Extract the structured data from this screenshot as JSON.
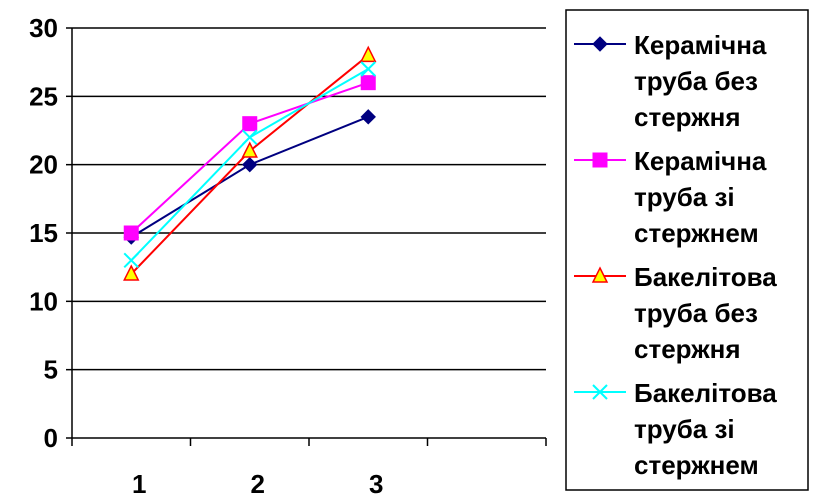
{
  "chart_data": {
    "type": "line",
    "categories": [
      "1",
      "2",
      "3"
    ],
    "y_ticks": [
      "0",
      "5",
      "10",
      "15",
      "20",
      "25",
      "30"
    ],
    "ylim": [
      0,
      30
    ],
    "grid": "horizontal",
    "legend_position": "right",
    "series": [
      {
        "name_lines": [
          "Керамічна",
          "труба без",
          "стержня"
        ],
        "values": [
          14.7,
          20,
          23.5
        ],
        "color": "#000080",
        "marker": "diamond",
        "marker_fill": "#000080"
      },
      {
        "name_lines": [
          "Керамічна",
          "труба зі",
          "стержнем"
        ],
        "values": [
          15,
          23,
          26
        ],
        "color": "#ff00ff",
        "marker": "square",
        "marker_fill": "#ff00ff"
      },
      {
        "name_lines": [
          "Бакелітова",
          "труба без",
          "стержня"
        ],
        "values": [
          12,
          21,
          28
        ],
        "color": "#ff0000",
        "marker": "triangle",
        "marker_fill": "#ffff00"
      },
      {
        "name_lines": [
          "Бакелітова",
          "труба зі",
          "стержнем"
        ],
        "values": [
          13,
          22,
          27
        ],
        "color": "#00ffff",
        "marker": "x",
        "marker_fill": "none"
      }
    ]
  }
}
